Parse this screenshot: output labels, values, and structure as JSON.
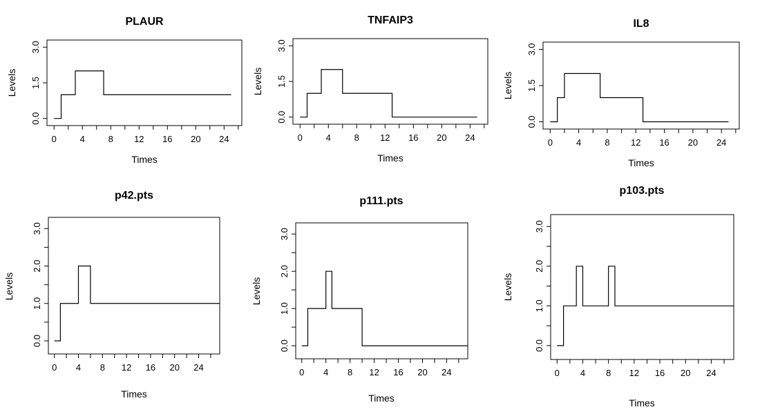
{
  "chart_data": [
    {
      "type": "line",
      "title": "PLAUR",
      "xlabel": "Times",
      "ylabel": "Levels",
      "xlim": [
        -1,
        26.5
      ],
      "ylim": [
        -0.3,
        3.3
      ],
      "xticks": [
        0,
        4,
        8,
        12,
        16,
        20,
        24
      ],
      "yticks": [
        "0.0",
        "1.5",
        "3.0"
      ],
      "minor_xticks": true,
      "step": true,
      "x": [
        0,
        1,
        3,
        7,
        25
      ],
      "y": [
        0,
        1,
        2,
        1,
        1
      ]
    },
    {
      "type": "line",
      "title": "TNFAIP3",
      "xlabel": "Times",
      "ylabel": "Levels",
      "xlim": [
        -1,
        26.5
      ],
      "ylim": [
        -0.3,
        3.3
      ],
      "xticks": [
        0,
        4,
        8,
        12,
        16,
        20,
        24
      ],
      "yticks": [
        "0.0",
        "1.5",
        "3.0"
      ],
      "minor_xticks": true,
      "step": true,
      "x": [
        0,
        1,
        3,
        6,
        13,
        25
      ],
      "y": [
        0,
        1,
        2,
        1,
        0,
        0
      ]
    },
    {
      "type": "line",
      "title": "IL8",
      "xlabel": "Times",
      "ylabel": "Levels",
      "xlim": [
        -1,
        26.5
      ],
      "ylim": [
        -0.3,
        3.3
      ],
      "xticks": [
        0,
        4,
        8,
        12,
        16,
        20,
        24
      ],
      "yticks": [
        "0.0",
        "1.5",
        "3.0"
      ],
      "minor_xticks": true,
      "step": true,
      "x": [
        0,
        1,
        2,
        7,
        13,
        25
      ],
      "y": [
        0,
        1,
        2,
        1,
        0,
        0
      ]
    },
    {
      "type": "line",
      "title": "p42.pts",
      "xlabel": "Times",
      "ylabel": "Levels",
      "xlim": [
        -1,
        27.5
      ],
      "ylim": [
        -0.35,
        3.3
      ],
      "xticks": [
        0,
        4,
        8,
        12,
        16,
        20,
        24
      ],
      "yticks": [
        "0.0",
        "1.0",
        "2.0",
        "3.0"
      ],
      "minor_xticks": true,
      "minor_yticks": true,
      "step": true,
      "x": [
        0,
        1,
        4,
        6,
        27.5
      ],
      "y": [
        0,
        1,
        2,
        1,
        1
      ]
    },
    {
      "type": "line",
      "title": "p111.pts",
      "xlabel": "Times",
      "ylabel": "Levels",
      "xlim": [
        -1,
        27.5
      ],
      "ylim": [
        -0.35,
        3.3
      ],
      "xticks": [
        0,
        4,
        8,
        12,
        16,
        20,
        24
      ],
      "yticks": [
        "0.0",
        "1.0",
        "2.0",
        "3.0"
      ],
      "minor_xticks": true,
      "minor_yticks": true,
      "step": true,
      "x": [
        0,
        1,
        4,
        5,
        10,
        27.5
      ],
      "y": [
        0,
        1,
        2,
        1,
        0,
        0
      ]
    },
    {
      "type": "line",
      "title": "p103.pts",
      "xlabel": "Times",
      "ylabel": "Levels",
      "xlim": [
        -1,
        27.5
      ],
      "ylim": [
        -0.35,
        3.3
      ],
      "xticks": [
        0,
        4,
        8,
        12,
        16,
        20,
        24
      ],
      "yticks": [
        "0.0",
        "1.0",
        "2.0",
        "3.0"
      ],
      "minor_xticks": true,
      "minor_yticks": true,
      "step": true,
      "x": [
        0,
        1,
        3,
        4,
        8,
        9,
        27.5
      ],
      "y": [
        0,
        1,
        2,
        1,
        2,
        1,
        1
      ]
    }
  ]
}
